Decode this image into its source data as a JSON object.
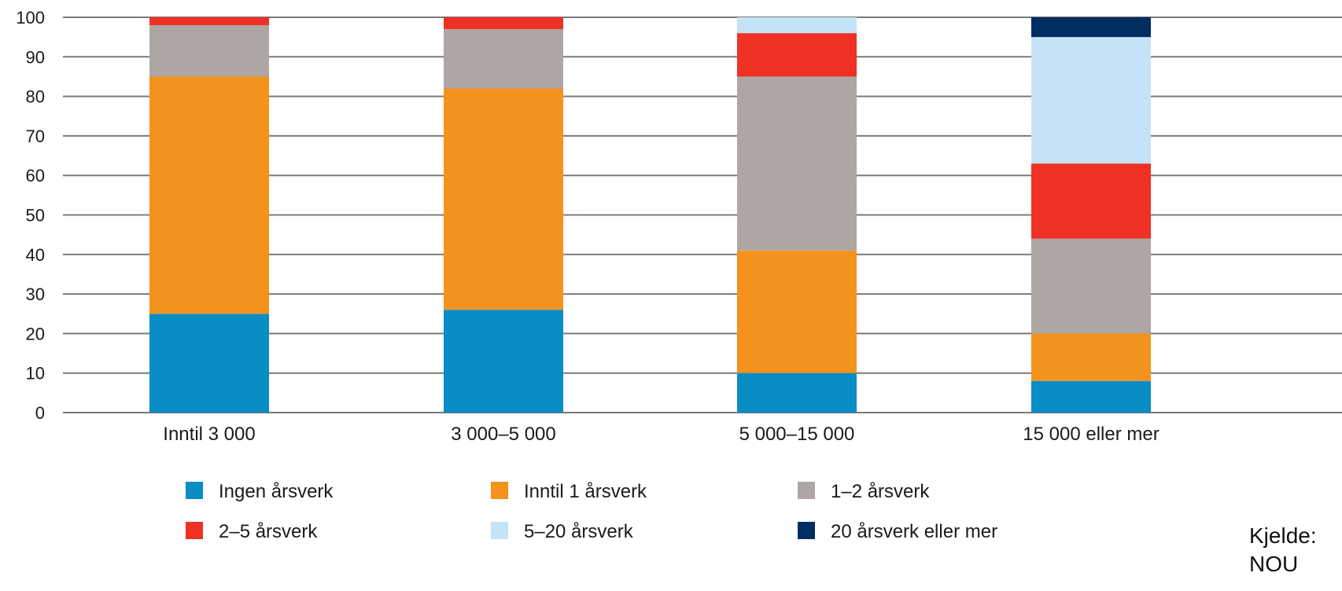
{
  "chart_data": {
    "type": "bar",
    "stacked": true,
    "categories": [
      "Inntil 3 000",
      "3 000–5 000",
      "5 000–15 000",
      "15 000 eller mer"
    ],
    "series": [
      {
        "name": "Ingen årsverk",
        "color": "#0a8cc4",
        "values": [
          25,
          26,
          10,
          8
        ]
      },
      {
        "name": "Inntil 1 årsverk",
        "color": "#f4921e",
        "values": [
          60,
          56,
          31,
          12
        ]
      },
      {
        "name": "1–2 årsverk",
        "color": "#ada6a2",
        "values": [
          13,
          15,
          44,
          24
        ]
      },
      {
        "name": "2–5 årsverk",
        "color": "#ee3124",
        "values": [
          2,
          3,
          11,
          19
        ]
      },
      {
        "name": "5–20 årsverk",
        "color": "#c5e3f6",
        "values": [
          0,
          0,
          4,
          32
        ]
      },
      {
        "name": "20 årsverk eller mer",
        "color": "#002d62",
        "values": [
          0,
          0,
          0,
          5
        ]
      }
    ],
    "ylim": [
      0,
      100
    ],
    "yticks": [
      "0",
      "10",
      "20",
      "30",
      "40",
      "50",
      "60",
      "70",
      "80",
      "90",
      "100"
    ],
    "grid": true,
    "legend_position": "bottom",
    "title": "",
    "xlabel": "",
    "ylabel": ""
  },
  "source_note": "Kjelde: NOU",
  "colors": {
    "gridline": "#7a7a7a",
    "text": "#1a1a1a"
  }
}
